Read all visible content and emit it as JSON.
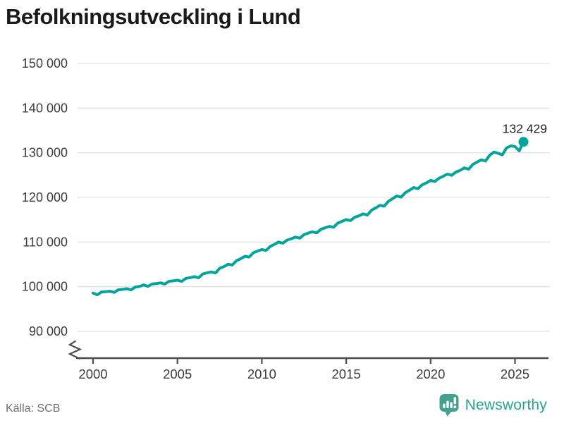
{
  "title": "Befolkningsutveckling i Lund",
  "footer": {
    "source": "Källa: SCB",
    "brand": "Newsworthy"
  },
  "colors": {
    "accent": "#00a49a",
    "grid": "#e2e2e2",
    "axis": "#4b4b4b",
    "title": "#1a1a1a",
    "tick_label": "#3c3c3c",
    "annotation": "#222222",
    "source_text": "#6f6f7a",
    "logo": "#43a191",
    "logo_text": "#2aa293"
  },
  "chart_data": {
    "type": "line",
    "title": "Befolkningsutveckling i Lund",
    "xlabel": "",
    "ylabel": "",
    "grid": "horizontal",
    "legend": "none",
    "axis_break": true,
    "ylim": [
      90000,
      150000
    ],
    "xlim": [
      1999.1,
      2027.1
    ],
    "y_ticks": {
      "values": [
        150000,
        140000,
        130000,
        120000,
        110000,
        100000,
        90000
      ],
      "labels": [
        "150 000",
        "140 000",
        "130 000",
        "120 000",
        "110 000",
        "100 000",
        "90 000"
      ]
    },
    "x_ticks": {
      "values": [
        2000,
        2005,
        2010,
        2015,
        2020,
        2025
      ],
      "labels": [
        "2000",
        "2005",
        "2010",
        "2015",
        "2020",
        "2025"
      ]
    },
    "end_point": {
      "x": 2025.5,
      "value": 132429,
      "label": "132 429"
    },
    "series": [
      {
        "name": "Befolkning i Lund (kvartalsdata)",
        "x_start": 2000.0,
        "x_step": 0.25,
        "values": [
          98580,
          98190,
          98810,
          98890,
          98990,
          98720,
          99310,
          99400,
          99560,
          99290,
          99910,
          100050,
          100400,
          100080,
          100630,
          100700,
          100860,
          100590,
          101210,
          101300,
          101450,
          101190,
          101870,
          102010,
          102260,
          101980,
          102860,
          103090,
          103310,
          103080,
          104110,
          104480,
          105010,
          104850,
          105840,
          106280,
          106810,
          106650,
          107610,
          107990,
          108310,
          108130,
          109030,
          109500,
          110000,
          109760,
          110450,
          110740,
          111110,
          110880,
          111680,
          112010,
          112300,
          112060,
          112870,
          113190,
          113510,
          113300,
          114230,
          114640,
          115030,
          114800,
          115560,
          115860,
          116320,
          116060,
          117120,
          117660,
          118230,
          118020,
          119150,
          119710,
          120310,
          120070,
          121070,
          121610,
          122210,
          121960,
          122820,
          123260,
          123810,
          123570,
          124300,
          124750,
          125220,
          124950,
          125680,
          126050,
          126610,
          126320,
          127370,
          127900,
          128420,
          128140,
          129450,
          130150,
          129890,
          129520,
          131080,
          131540,
          131380,
          130420,
          132429
        ]
      }
    ]
  }
}
